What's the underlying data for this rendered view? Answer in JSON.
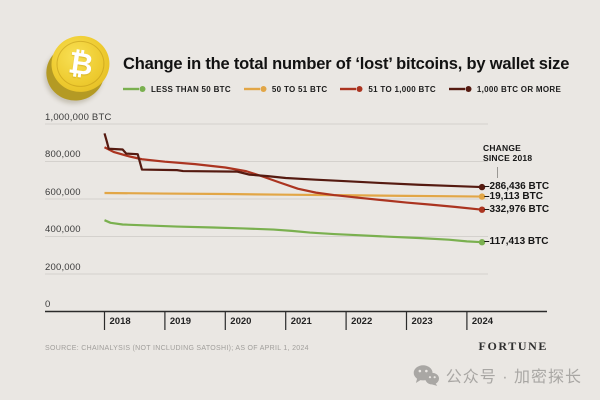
{
  "header": {
    "coin_symbol": "₿"
  },
  "chart_data": {
    "type": "line",
    "title": "Change in the total number of ‘lost’ bitcoins, by wallet size",
    "xlabel": "",
    "ylabel": "BTC",
    "grid": true,
    "legend_position": "top",
    "x_range": [
      2018,
      2024.3
    ],
    "ylim": [
      0,
      1000000
    ],
    "x_ticks": [
      2018,
      2019,
      2020,
      2021,
      2022,
      2023,
      2024
    ],
    "y_ticks": [
      {
        "value": 1000000,
        "label": "1,000,000 BTC"
      },
      {
        "value": 800000,
        "label": "800,000"
      },
      {
        "value": 600000,
        "label": "600,000"
      },
      {
        "value": 400000,
        "label": "400,000"
      },
      {
        "value": 200000,
        "label": "200,000"
      },
      {
        "value": 0,
        "label": "0"
      }
    ],
    "annotation_header_line1": "CHANGE",
    "annotation_header_line2": "SINCE 2018",
    "series": [
      {
        "id": "less-than-50",
        "name": "LESS THAN 50 BTC",
        "color": "#7ab04f",
        "end_label": "–117,413 BTC",
        "change_since_2018": -117413,
        "points": [
          [
            2018.0,
            487000
          ],
          [
            2018.1,
            473000
          ],
          [
            2018.3,
            464000
          ],
          [
            2018.7,
            459000
          ],
          [
            2019.2,
            453000
          ],
          [
            2019.8,
            448000
          ],
          [
            2020.3,
            443000
          ],
          [
            2020.8,
            437000
          ],
          [
            2021.1,
            430000
          ],
          [
            2021.4,
            421000
          ],
          [
            2021.8,
            413000
          ],
          [
            2022.2,
            407000
          ],
          [
            2022.7,
            399000
          ],
          [
            2023.2,
            392000
          ],
          [
            2023.7,
            383000
          ],
          [
            2024.0,
            374000
          ],
          [
            2024.25,
            369587
          ]
        ]
      },
      {
        "id": "50-to-51",
        "name": "50 TO 51 BTC",
        "color": "#e2a646",
        "end_label": "–19,113 BTC",
        "change_since_2018": -19113,
        "points": [
          [
            2018.0,
            632000
          ],
          [
            2019.0,
            629000
          ],
          [
            2020.0,
            626500
          ],
          [
            2021.0,
            623000
          ],
          [
            2022.0,
            620000
          ],
          [
            2023.0,
            616500
          ],
          [
            2024.25,
            612887
          ]
        ]
      },
      {
        "id": "51-to-1000",
        "name": "51 TO 1,000 BTC",
        "color": "#ab3420",
        "end_label": "–332,976 BTC",
        "change_since_2018": -332976,
        "points": [
          [
            2018.0,
            876000
          ],
          [
            2018.15,
            851000
          ],
          [
            2018.4,
            828000
          ],
          [
            2018.62,
            812000
          ],
          [
            2019.0,
            799000
          ],
          [
            2019.5,
            786000
          ],
          [
            2020.0,
            768000
          ],
          [
            2020.35,
            748000
          ],
          [
            2020.6,
            722000
          ],
          [
            2020.9,
            688000
          ],
          [
            2021.2,
            655000
          ],
          [
            2021.5,
            634000
          ],
          [
            2021.8,
            621000
          ],
          [
            2022.2,
            607000
          ],
          [
            2022.6,
            594000
          ],
          [
            2023.0,
            581000
          ],
          [
            2023.4,
            570000
          ],
          [
            2023.8,
            558000
          ],
          [
            2024.25,
            543024
          ]
        ]
      },
      {
        "id": "1000-or-more",
        "name": "1,000 BTC OR MORE",
        "color": "#551a10",
        "end_label": "–286,436 BTC",
        "change_since_2018": -286436,
        "points": [
          [
            2018.0,
            950000
          ],
          [
            2018.04,
            905000
          ],
          [
            2018.07,
            868000
          ],
          [
            2018.3,
            864000
          ],
          [
            2018.36,
            842000
          ],
          [
            2018.55,
            839000
          ],
          [
            2018.62,
            757000
          ],
          [
            2019.2,
            754000
          ],
          [
            2019.3,
            749000
          ],
          [
            2020.2,
            746000
          ],
          [
            2020.4,
            730000
          ],
          [
            2020.7,
            722000
          ],
          [
            2021.0,
            712000
          ],
          [
            2021.5,
            703000
          ],
          [
            2022.0,
            695000
          ],
          [
            2022.6,
            685000
          ],
          [
            2023.2,
            676000
          ],
          [
            2023.8,
            669000
          ],
          [
            2024.25,
            663564
          ]
        ]
      }
    ]
  },
  "footer": {
    "source": "SOURCE: CHAINALYSIS (NOT INCLUDING SATOSHI); AS OF APRIL 1, 2024",
    "brand": "FORTUNE",
    "watermark": "公众号 · 加密探长"
  },
  "theme": {
    "background": "#eae7e3",
    "gridline": "#d4d1cd",
    "axis": "#2b2b2b",
    "coin_gold": "#eecb30"
  }
}
